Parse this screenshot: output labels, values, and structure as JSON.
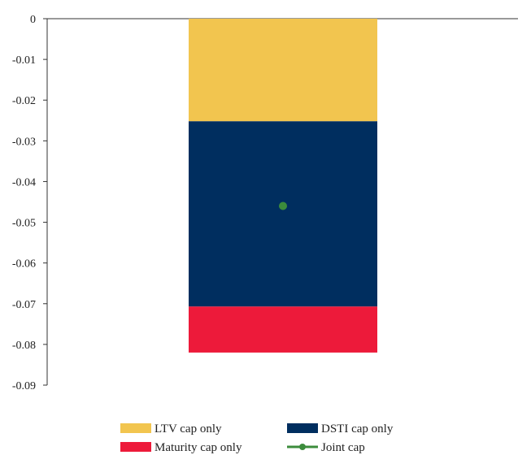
{
  "chart_data": {
    "type": "bar",
    "stacked": true,
    "categories": [
      ""
    ],
    "series": [
      {
        "name": "LTV cap only",
        "values": [
          -0.0252
        ],
        "color": "#F2C54F"
      },
      {
        "name": "DSTI cap only",
        "values": [
          -0.0455
        ],
        "color": "#002E5F"
      },
      {
        "name": "Maturity cap only",
        "values": [
          -0.0113
        ],
        "color": "#ED1A3A"
      }
    ],
    "overlay": {
      "name": "Joint cap",
      "type": "line-marker",
      "values": [
        -0.046
      ],
      "color": "#3C8C3C"
    },
    "ylim": [
      -0.09,
      0
    ],
    "yticks": [
      "0",
      "-0.01",
      "-0.02",
      "-0.03",
      "-0.04",
      "-0.05",
      "-0.06",
      "-0.07",
      "-0.08",
      "-0.09"
    ],
    "ytick_values": [
      0,
      -0.01,
      -0.02,
      -0.03,
      -0.04,
      -0.05,
      -0.06,
      -0.07,
      -0.08,
      -0.09
    ],
    "title": "",
    "xlabel": "",
    "ylabel": "",
    "grid": false,
    "legend_placement": "bottom"
  }
}
